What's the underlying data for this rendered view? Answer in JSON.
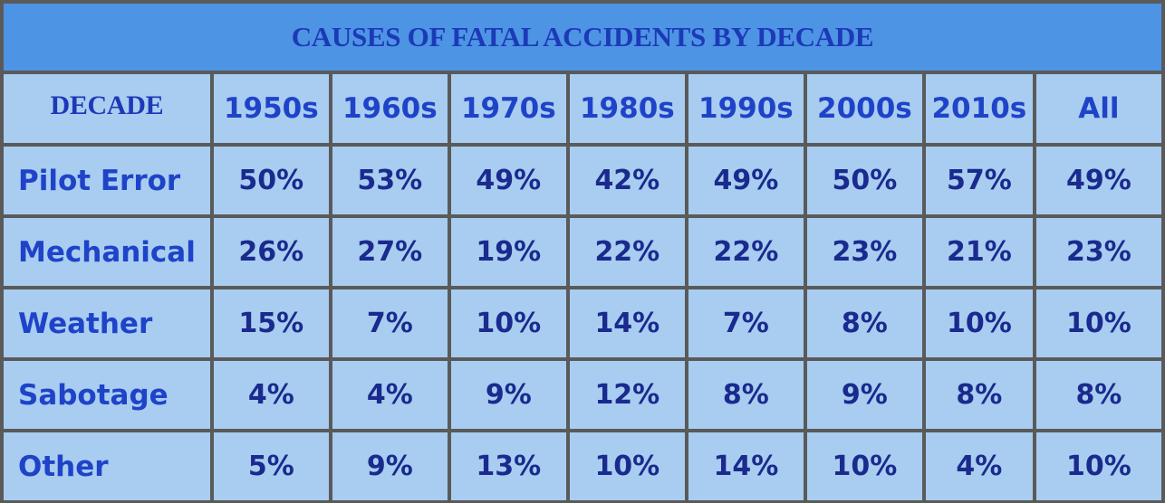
{
  "chart_data": {
    "type": "table",
    "title": "CAUSES OF FATAL ACCIDENTS BY DECADE",
    "header_label": "DECADE",
    "columns": [
      "1950s",
      "1960s",
      "1970s",
      "1980s",
      "1990s",
      "2000s",
      "2010s",
      "All"
    ],
    "rows": [
      {
        "label": "Pilot Error",
        "values": [
          "50%",
          "53%",
          "49%",
          "42%",
          "49%",
          "50%",
          "57%",
          "49%"
        ]
      },
      {
        "label": "Mechanical",
        "values": [
          "26%",
          "27%",
          "19%",
          "22%",
          "22%",
          "23%",
          "21%",
          "23%"
        ]
      },
      {
        "label": "Weather",
        "values": [
          "15%",
          "7%",
          "10%",
          "14%",
          "7%",
          "8%",
          "10%",
          "10%"
        ]
      },
      {
        "label": "Sabotage",
        "values": [
          "4%",
          "4%",
          "9%",
          "12%",
          "8%",
          "9%",
          "8%",
          "8%"
        ]
      },
      {
        "label": "Other",
        "values": [
          "5%",
          "9%",
          "13%",
          "10%",
          "14%",
          "10%",
          "4%",
          "10%"
        ]
      }
    ]
  },
  "colors": {
    "title_background": "#4d94e4",
    "cell_background": "#a8cdf0",
    "grid_lines": "#5a5a5a",
    "text_dark_blue": "#1a2a8e",
    "text_label_blue": "#1f43c8"
  }
}
